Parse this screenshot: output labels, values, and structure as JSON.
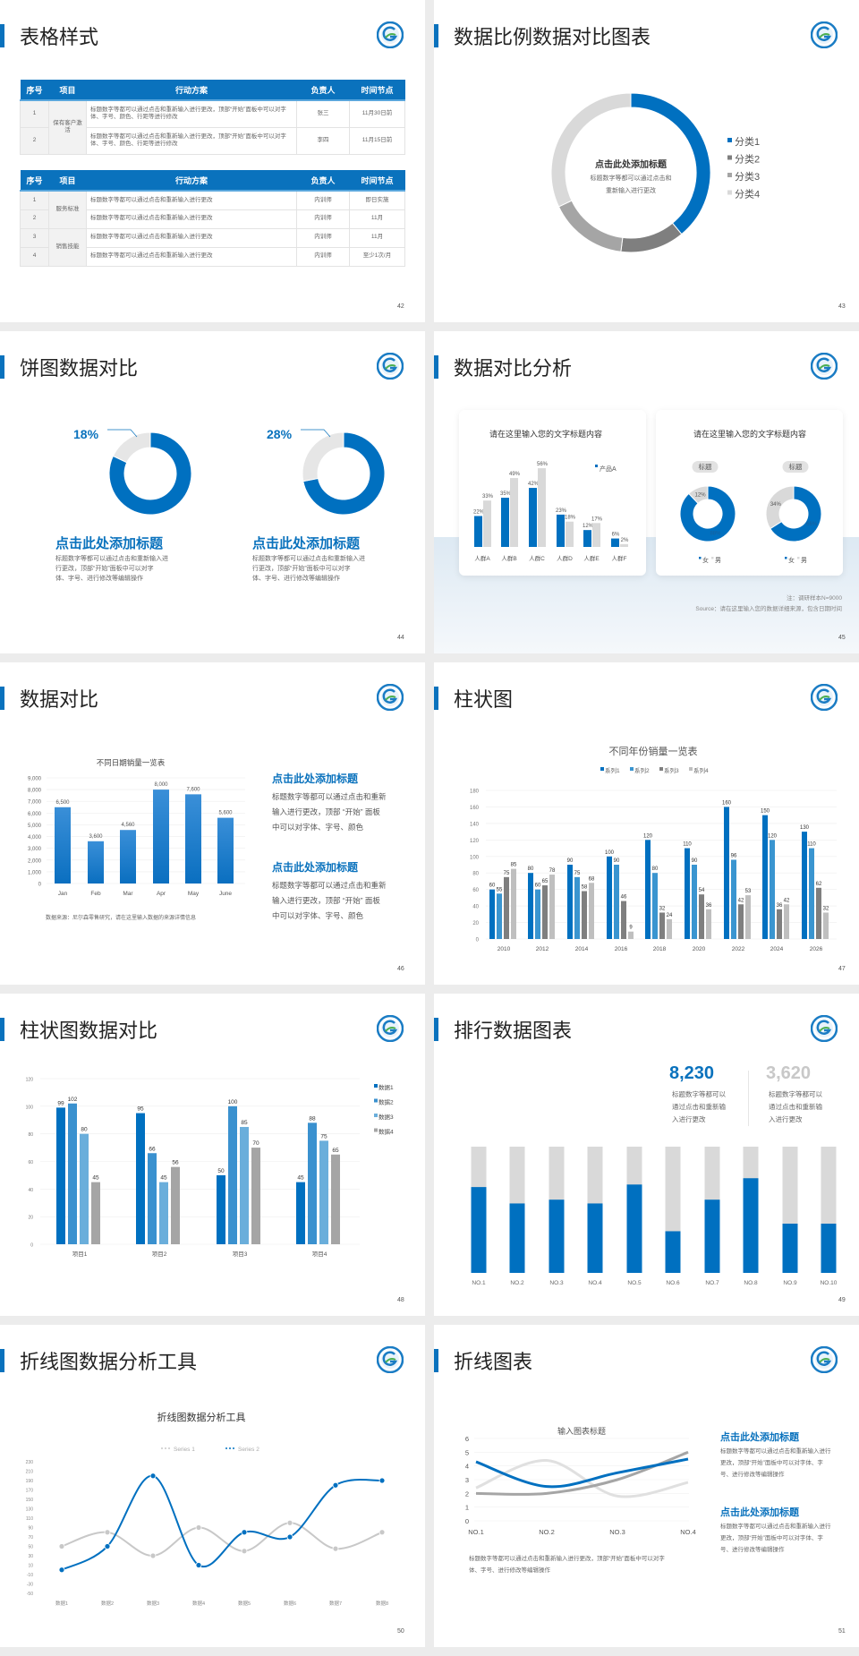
{
  "colors": {
    "accent": "#0a72bd",
    "blue": "#0070c0",
    "mid_blue": "#3a95d0",
    "light_blue": "#6aaedb",
    "dark_gray": "#7f7f7f",
    "gray": "#a5a5a5",
    "light_gray": "#d9d9d9"
  },
  "logo": {
    "icon": "school-emblem-logo"
  },
  "s42": {
    "title": "表格样式",
    "page": "42",
    "table1": {
      "headers": [
        "序号",
        "项目",
        "行动方案",
        "负责人",
        "时间节点"
      ],
      "groups": [
        {
          "name": "保有客户激活",
          "rows": [
            [
              "1",
              "标题数字等都可以通过点击和重新输入进行更改，顶部“开始”面板中可以对字体、字号、颜色、行距等进行修改",
              "张三",
              "11月30日前"
            ],
            [
              "2",
              "标题数字等都可以通过点击和重新输入进行更改，顶部“开始”面板中可以对字体、字号、颜色、行距等进行修改",
              "李四",
              "11月15日前"
            ]
          ]
        }
      ]
    },
    "table2": {
      "headers": [
        "序号",
        "项目",
        "行动方案",
        "负责人",
        "时间节点"
      ],
      "groups": [
        {
          "name": "服务标准",
          "rows": [
            [
              "1",
              "标题数字等都可以通过点击和重新输入进行更改",
              "内训师",
              "即日实施"
            ],
            [
              "2",
              "标题数字等都可以通过点击和重新输入进行更改",
              "内训师",
              "11月"
            ]
          ]
        },
        {
          "name": "销售技能",
          "rows": [
            [
              "3",
              "标题数字等都可以通过点击和重新输入进行更改",
              "内训师",
              "11月"
            ],
            [
              "4",
              "标题数字等都可以通过点击和重新输入进行更改",
              "内训师",
              "至少1次/月"
            ]
          ]
        }
      ]
    }
  },
  "s43": {
    "title": "数据比例数据对比图表",
    "page": "43",
    "center_title": "点击此处添加标题",
    "center_line1": "标题数字等都可以通过点击和",
    "center_line2": "重新输入进行更改"
  },
  "s44": {
    "title": "饼图数据对比",
    "page": "44",
    "items": [
      {
        "heading": "点击此处添加标题",
        "lines": [
          "标题数字等都可以通过点击和重新输入进",
          "行更改，顶部“开始”面板中可以对字",
          "体、字号、进行修改等编辑操作"
        ]
      },
      {
        "heading": "点击此处添加标题",
        "lines": [
          "标题数字等都可以通过点击和重新输入进",
          "行更改，顶部“开始”面板中可以对字",
          "体、字号、进行修改等编辑操作"
        ]
      }
    ]
  },
  "s45": {
    "title": "数据对比分析",
    "page": "45",
    "card1_title": "请在这里输入您的文字标题内容",
    "card2_title": "请在这里输入您的文字标题内容",
    "tag1": "标题",
    "tag2": "标题",
    "note": "注：调研样本N=9000",
    "source": "Source：请在这里输入您的数据详细来源，包含日期时间"
  },
  "s46": {
    "title": "数据对比",
    "page": "46",
    "source": "数据来源：尼尔森零售研究，请在这里输入数据的来源详情信息",
    "blocks": [
      {
        "heading": "点击此处添加标题",
        "lines": [
          "标题数字等都可以通过点击和重新",
          "输入进行更改，顶部 “开始” 面板",
          "中可以对字体、字号、颜色"
        ]
      },
      {
        "heading": "点击此处添加标题",
        "lines": [
          "标题数字等都可以通过点击和重新",
          "输入进行更改，顶部 “开始” 面板",
          "中可以对字体、字号、颜色"
        ]
      }
    ]
  },
  "s47": {
    "title": "柱状图",
    "page": "47"
  },
  "s48": {
    "title": "柱状图数据对比",
    "page": "48"
  },
  "s49": {
    "title": "排行数据图表",
    "page": "49",
    "stat1": {
      "value": "8,230",
      "lines": [
        "标题数字等都可以",
        "通过点击和重新输",
        "入进行更改"
      ]
    },
    "stat2": {
      "value": "3,620",
      "lines": [
        "标题数字等都可以",
        "通过点击和重新输",
        "入进行更改"
      ]
    }
  },
  "s50": {
    "title": "折线图数据分析工具",
    "page": "50"
  },
  "s51": {
    "title": "折线图表",
    "page": "51",
    "caption_lines": [
      "标题数字等都可以通过点击和重新输入进行更改，顶部“开始”面板中可以对字",
      "体、字号、进行修改等编辑操作"
    ],
    "blocks": [
      {
        "heading": "点击此处添加标题",
        "lines": [
          "标题数字等都可以通过点击和重新输入进行",
          "更改，顶部“开始”面板中可以对字体、字",
          "号、进行修改等编辑操作"
        ]
      },
      {
        "heading": "点击此处添加标题",
        "lines": [
          "标题数字等都可以通过点击和重新输入进行",
          "更改，顶部“开始”面板中可以对字体、字",
          "号、进行修改等编辑操作"
        ]
      }
    ]
  },
  "chart_data": [
    {
      "id": "s43",
      "type": "pie",
      "donut": true,
      "categories": [
        "分类1",
        "分类2",
        "分类3",
        "分类4"
      ],
      "values": [
        39,
        13,
        16,
        32
      ],
      "legend": "right",
      "colors": [
        "#0070c0",
        "#7f7f7f",
        "#a5a5a5",
        "#d9d9d9"
      ]
    },
    {
      "id": "s44a",
      "type": "pie",
      "donut": true,
      "values": [
        82,
        18
      ],
      "label": "18%",
      "colors": [
        "#0070c0",
        "#e6e6e6"
      ]
    },
    {
      "id": "s44b",
      "type": "pie",
      "donut": true,
      "values": [
        72,
        28
      ],
      "label": "28%",
      "colors": [
        "#0070c0",
        "#e6e6e6"
      ]
    },
    {
      "id": "s45bar",
      "type": "bar",
      "categories": [
        "人群A",
        "人群B",
        "人群C",
        "人群D",
        "人群E",
        "人群F"
      ],
      "series": [
        {
          "name": "产品A",
          "values": [
            22,
            35,
            42,
            23,
            12,
            6
          ],
          "color": "#0070c0"
        },
        {
          "values": [
            33,
            49,
            56,
            18,
            17,
            2
          ],
          "color": "#d9d9d9"
        }
      ],
      "unit": "%"
    },
    {
      "id": "s45d1",
      "type": "pie",
      "donut": true,
      "categories": [
        "女",
        "男"
      ],
      "values": [
        88,
        12
      ],
      "labels": [
        "88%",
        "12%"
      ],
      "colors": [
        "#0070c0",
        "#d9d9d9"
      ]
    },
    {
      "id": "s45d2",
      "type": "pie",
      "donut": true,
      "categories": [
        "女",
        "男"
      ],
      "values": [
        66,
        34
      ],
      "labels": [
        "66%",
        "34%"
      ],
      "colors": [
        "#0070c0",
        "#d9d9d9"
      ]
    },
    {
      "id": "s46",
      "type": "bar",
      "title": "不同日期销量一览表",
      "categories": [
        "Jan",
        "Feb",
        "Mar",
        "Apr",
        "May",
        "June"
      ],
      "values": [
        6500,
        3600,
        4560,
        8000,
        7600,
        5600
      ],
      "value_labels": [
        "6,500",
        "3,600",
        "4,560",
        "8,000",
        "7,600",
        "5,600"
      ],
      "ylim": [
        0,
        9000
      ],
      "yticks": [
        "0",
        "1,000",
        "2,000",
        "3,000",
        "4,000",
        "5,000",
        "6,000",
        "7,000",
        "8,000",
        "9,000"
      ],
      "grid": true
    },
    {
      "id": "s47",
      "type": "bar",
      "title": "不同年份销量一览表",
      "categories": [
        "2010",
        "2012",
        "2014",
        "2016",
        "2018",
        "2020",
        "2022",
        "2024",
        "2026"
      ],
      "series": [
        {
          "name": "系列1",
          "values": [
            60,
            80,
            90,
            100,
            120,
            110,
            160,
            150,
            130
          ],
          "color": "#0070c0"
        },
        {
          "name": "系列2",
          "values": [
            55,
            60,
            75,
            90,
            80,
            90,
            96,
            120,
            110
          ],
          "color": "#3a95d0"
        },
        {
          "name": "系列3",
          "values": [
            75,
            65,
            58,
            46,
            32,
            54,
            42,
            36,
            62
          ],
          "color": "#7f7f7f"
        },
        {
          "name": "系列4",
          "values": [
            85,
            78,
            68,
            9,
            24,
            36,
            53,
            42,
            32
          ],
          "color": "#bfbfbf"
        }
      ],
      "ylim": [
        0,
        180
      ],
      "yticks": [
        0,
        20,
        40,
        60,
        80,
        100,
        120,
        140,
        160,
        180
      ],
      "legend": "top",
      "grid": true
    },
    {
      "id": "s48",
      "type": "bar",
      "categories": [
        "项目1",
        "项目2",
        "项目3",
        "项目4"
      ],
      "series": [
        {
          "name": "数据1",
          "values": [
            99,
            95,
            50,
            45
          ],
          "color": "#0070c0"
        },
        {
          "name": "数据2",
          "values": [
            102,
            66,
            100,
            88
          ],
          "color": "#3a91cf"
        },
        {
          "name": "数据3",
          "values": [
            80,
            45,
            85,
            75
          ],
          "color": "#6aaedb"
        },
        {
          "name": "数据4",
          "values": [
            45,
            56,
            70,
            65
          ],
          "color": "#a5a5a5"
        }
      ],
      "ylim": [
        0,
        120
      ],
      "yticks": [
        0,
        20,
        40,
        60,
        80,
        100,
        120
      ],
      "legend": "right",
      "grid": true
    },
    {
      "id": "s49",
      "type": "bar",
      "stacked_percent": true,
      "categories": [
        "NO.1",
        "NO.2",
        "NO.3",
        "NO.4",
        "NO.5",
        "NO.6",
        "NO.7",
        "NO.8",
        "NO.9",
        "NO.10"
      ],
      "values": [
        0.68,
        0.55,
        0.58,
        0.55,
        0.7,
        0.33,
        0.58,
        0.75,
        0.39,
        0.39
      ],
      "colors": [
        "#0070c0",
        "#d9d9d9"
      ]
    },
    {
      "id": "s50",
      "type": "line",
      "smooth": true,
      "title": "折线图数据分析工具",
      "categories": [
        "数据1",
        "数据2",
        "数据3",
        "数据4",
        "数据5",
        "数据6",
        "数据7",
        "数据8"
      ],
      "series": [
        {
          "name": "Series 1",
          "values": [
            50,
            80,
            30,
            90,
            40,
            100,
            45,
            80
          ],
          "color": "#c8c8c8"
        },
        {
          "name": "Series 2",
          "values": [
            0,
            50,
            200,
            10,
            80,
            70,
            180,
            190
          ],
          "color": "#0070c0"
        }
      ],
      "ylim": [
        -50,
        230
      ],
      "yticks": [
        -50,
        -30,
        -10,
        10,
        30,
        50,
        70,
        90,
        110,
        130,
        150,
        170,
        190,
        210,
        230
      ],
      "legend": "top"
    },
    {
      "id": "s51",
      "type": "line",
      "smooth": true,
      "title": "输入图表标题",
      "categories": [
        "NO.1",
        "NO.2",
        "NO.3",
        "NO.4"
      ],
      "series": [
        {
          "values": [
            4.3,
            2.5,
            3.5,
            4.5
          ],
          "color": "#0070c0"
        },
        {
          "values": [
            2.4,
            4.4,
            1.8,
            2.8
          ],
          "color": "#e0e0e0"
        },
        {
          "values": [
            2,
            2,
            3,
            5
          ],
          "color": "#a5a5a5"
        }
      ],
      "ylim": [
        0,
        6
      ],
      "yticks": [
        0,
        1,
        2,
        3,
        4,
        5,
        6
      ],
      "grid": true
    }
  ]
}
